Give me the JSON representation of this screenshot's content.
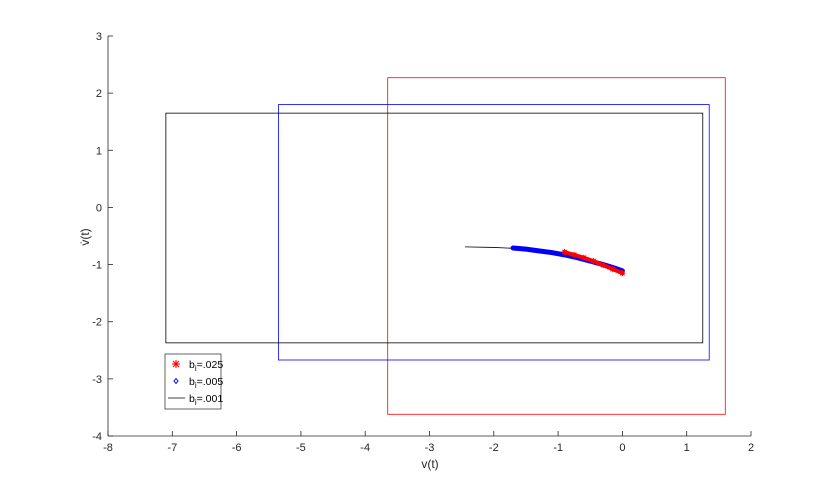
{
  "chart_data": {
    "type": "line",
    "xlabel": "v(t)",
    "ylabel": "v̇(t)",
    "xlim": [
      -8,
      2
    ],
    "ylim": [
      -4,
      3
    ],
    "xticks": [
      "-8",
      "-7",
      "-6",
      "-5",
      "-4",
      "-3",
      "-2",
      "-1",
      "0",
      "1",
      "2"
    ],
    "yticks": [
      "-4",
      "-3",
      "-2",
      "-1",
      "0",
      "1",
      "2",
      "3"
    ],
    "grid": false,
    "legend_position": "bottom-left",
    "series": [
      {
        "name": "b_i=.025",
        "legend_base": "b",
        "legend_sub": "i",
        "legend_rest": "=.025",
        "color": "#ff0000",
        "marker": "asterisk",
        "box": {
          "x": [
            -3.65,
            1.6
          ],
          "y": [
            -3.62,
            2.27
          ]
        },
        "x": [
          -0.9,
          -0.75,
          -0.6,
          -0.45,
          -0.3,
          -0.15,
          0.0
        ],
        "y": [
          -0.78,
          -0.83,
          -0.88,
          -0.94,
          -1.01,
          -1.08,
          -1.15
        ]
      },
      {
        "name": "b_i=.005",
        "legend_base": "b",
        "legend_sub": "i",
        "legend_rest": "=.005",
        "color": "#0000ff",
        "marker": "diamond",
        "box": {
          "x": [
            -5.35,
            1.35
          ],
          "y": [
            -2.67,
            1.8
          ]
        },
        "x": [
          -1.7,
          -1.5,
          -1.3,
          -1.1,
          -0.9,
          -0.7,
          -0.5,
          -0.3,
          -0.1,
          0.0
        ],
        "y": [
          -0.71,
          -0.73,
          -0.76,
          -0.79,
          -0.83,
          -0.88,
          -0.94,
          -1.0,
          -1.07,
          -1.11
        ]
      },
      {
        "name": "b_i=.001",
        "legend_base": "b",
        "legend_sub": "i",
        "legend_rest": "=.001",
        "color": "#000000",
        "marker": "none",
        "box": {
          "x": [
            -7.1,
            1.25
          ],
          "y": [
            -2.37,
            1.65
          ]
        },
        "x": [
          -2.45,
          -2.0,
          -1.6,
          -1.2,
          -0.8,
          -0.4,
          0.0
        ],
        "y": [
          -0.69,
          -0.7,
          -0.72,
          -0.76,
          -0.83,
          -0.94,
          -1.1
        ]
      }
    ]
  }
}
